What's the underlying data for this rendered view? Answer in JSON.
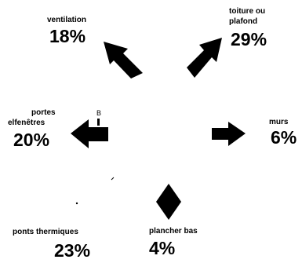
{
  "categories": [
    {
      "id": "ventilation",
      "label": "ventilation",
      "percent": "18%"
    },
    {
      "id": "roof",
      "label_line1": "toiture ou",
      "label_line2": "plafond",
      "percent": "29%"
    },
    {
      "id": "doors",
      "label_line1": "portes",
      "label_line2": "elfenêtres",
      "percent": "20%"
    },
    {
      "id": "walls",
      "label": "murs",
      "percent": "6%"
    },
    {
      "id": "bridges",
      "label": "ponts thermiques",
      "percent": "23%"
    },
    {
      "id": "floor",
      "label": "plancher bas",
      "percent": "4%"
    }
  ],
  "center_mark": "B",
  "colors": {
    "arrow": "#000000",
    "text": "#000000",
    "background": "#ffffff"
  }
}
